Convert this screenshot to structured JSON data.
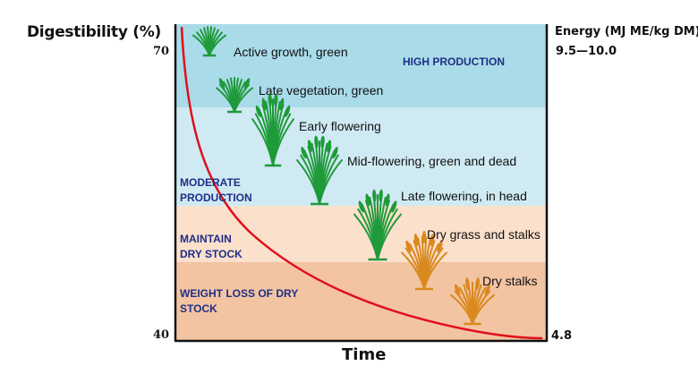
{
  "y_axis_label": "Digestibility (%)",
  "y_ticks": {
    "top": "70",
    "bottom": "40"
  },
  "energy": {
    "label": "Energy (MJ ME/kg DM)",
    "top": "9.5—10.0",
    "bottom": "4.8"
  },
  "x_axis_label": "Time",
  "zones": [
    {
      "label_lines": [
        "HIGH PRODUCTION"
      ],
      "color": "#a9dbe9"
    },
    {
      "label_lines": [
        "MODERATE",
        "PRODUCTION"
      ],
      "color": "#cfeaf3"
    },
    {
      "label_lines": [
        "MAINTAIN",
        "DRY STOCK"
      ],
      "color": "#fbe0cc"
    },
    {
      "label_lines": [
        "WEIGHT LOSS OF DRY",
        "STOCK"
      ],
      "color": "#f3c4a2"
    }
  ],
  "stages": [
    {
      "label": "Active growth, green",
      "plant_color": "#1f9a3a"
    },
    {
      "label": "Late vegetation, green",
      "plant_color": "#1f9a3a"
    },
    {
      "label": "Early flowering",
      "plant_color": "#1f9a3a"
    },
    {
      "label": "Mid-flowering, green and dead",
      "plant_color": "#1f9a3a"
    },
    {
      "label": "Late flowering, in head",
      "plant_color": "#1f9a3a"
    },
    {
      "label": "Dry grass and stalks",
      "plant_color": "#d9891e"
    },
    {
      "label": "Dry stalks",
      "plant_color": "#d9891e"
    }
  ],
  "curve_color": "#e0101a",
  "axis_color": "#111111"
}
